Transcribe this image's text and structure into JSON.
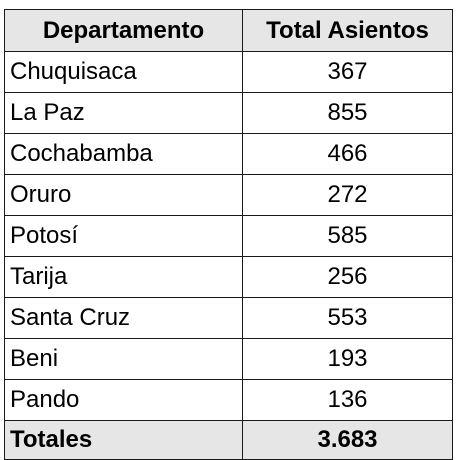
{
  "table": {
    "headers": {
      "department": "Departamento",
      "total": "Total Asientos"
    },
    "rows": [
      {
        "department": "Chuquisaca",
        "total": "367"
      },
      {
        "department": "La Paz",
        "total": "855"
      },
      {
        "department": "Cochabamba",
        "total": "466"
      },
      {
        "department": "Oruro",
        "total": "272"
      },
      {
        "department": "Potosí",
        "total": "585"
      },
      {
        "department": "Tarija",
        "total": "256"
      },
      {
        "department": "Santa Cruz",
        "total": "553"
      },
      {
        "department": "Beni",
        "total": "193"
      },
      {
        "department": "Pando",
        "total": "136"
      }
    ],
    "footer": {
      "label": "Totales",
      "total": "3.683"
    }
  },
  "colors": {
    "header_background": "#e6e6e6",
    "border": "#1a1a1a",
    "text": "#000000"
  }
}
